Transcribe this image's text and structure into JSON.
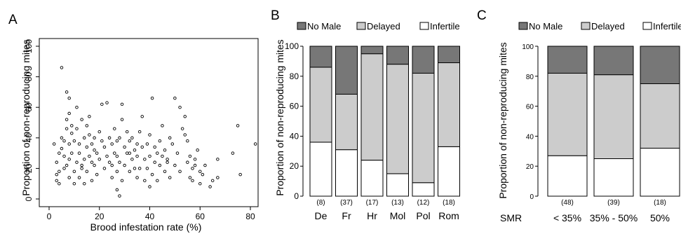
{
  "chart_data": [
    {
      "panel": "A",
      "type": "scatter",
      "title": "",
      "xlabel": "Brood infestation rate (%)",
      "ylabel": "Proportion of non-reproducing mites",
      "xlim": [
        0,
        80
      ],
      "ylim": [
        0,
        100
      ],
      "xticks": [
        0,
        20,
        40,
        60,
        80
      ],
      "yticks": [
        0,
        20,
        40,
        60,
        80,
        100
      ],
      "grid": false,
      "points": [
        [
          2,
          36
        ],
        [
          3,
          12
        ],
        [
          3,
          16
        ],
        [
          3,
          24
        ],
        [
          4,
          10
        ],
        [
          4,
          18
        ],
        [
          4,
          30
        ],
        [
          5,
          86
        ],
        [
          5,
          33
        ],
        [
          5,
          40
        ],
        [
          6,
          20
        ],
        [
          6,
          28
        ],
        [
          6,
          38
        ],
        [
          7,
          22
        ],
        [
          7,
          46
        ],
        [
          7,
          52
        ],
        [
          7,
          70
        ],
        [
          8,
          14
        ],
        [
          8,
          26
        ],
        [
          8,
          36
        ],
        [
          8,
          56
        ],
        [
          8,
          66
        ],
        [
          9,
          43
        ],
        [
          9,
          48
        ],
        [
          9,
          30
        ],
        [
          10,
          18
        ],
        [
          10,
          10
        ],
        [
          10,
          38
        ],
        [
          11,
          24
        ],
        [
          11,
          46
        ],
        [
          11,
          60
        ],
        [
          12,
          14
        ],
        [
          12,
          30
        ],
        [
          12,
          36
        ],
        [
          13,
          20
        ],
        [
          13,
          22
        ],
        [
          13,
          52
        ],
        [
          14,
          10
        ],
        [
          14,
          26
        ],
        [
          14,
          40
        ],
        [
          15,
          18
        ],
        [
          15,
          34
        ],
        [
          15,
          48
        ],
        [
          16,
          28
        ],
        [
          16,
          42
        ],
        [
          16,
          54
        ],
        [
          17,
          12
        ],
        [
          17,
          24
        ],
        [
          17,
          36
        ],
        [
          18,
          22
        ],
        [
          18,
          32
        ],
        [
          18,
          40
        ],
        [
          19,
          16
        ],
        [
          19,
          30
        ],
        [
          20,
          26
        ],
        [
          20,
          44
        ],
        [
          21,
          62
        ],
        [
          21,
          38
        ],
        [
          22,
          20
        ],
        [
          22,
          34
        ],
        [
          23,
          28
        ],
        [
          23,
          63
        ],
        [
          24,
          24
        ],
        [
          24,
          40
        ],
        [
          25,
          14
        ],
        [
          25,
          22
        ],
        [
          25,
          36
        ],
        [
          26,
          30
        ],
        [
          26,
          46
        ],
        [
          27,
          6
        ],
        [
          27,
          18
        ],
        [
          27,
          28
        ],
        [
          27,
          38
        ],
        [
          28,
          2
        ],
        [
          28,
          24
        ],
        [
          28,
          40
        ],
        [
          29,
          12
        ],
        [
          29,
          52
        ],
        [
          29,
          62
        ],
        [
          30,
          22
        ],
        [
          30,
          34
        ],
        [
          31,
          30
        ],
        [
          31,
          44
        ],
        [
          32,
          18
        ],
        [
          32,
          30
        ],
        [
          32,
          38
        ],
        [
          33,
          26
        ],
        [
          33,
          40
        ],
        [
          34,
          20
        ],
        [
          34,
          32
        ],
        [
          35,
          14
        ],
        [
          35,
          28
        ],
        [
          35,
          36
        ],
        [
          36,
          20
        ],
        [
          36,
          44
        ],
        [
          37,
          34
        ],
        [
          37,
          54
        ],
        [
          38,
          26
        ],
        [
          38,
          12
        ],
        [
          39,
          20
        ],
        [
          39,
          36
        ],
        [
          40,
          8
        ],
        [
          40,
          42
        ],
        [
          40,
          28
        ],
        [
          41,
          16
        ],
        [
          41,
          66
        ],
        [
          42,
          24
        ],
        [
          42,
          34
        ],
        [
          43,
          12
        ],
        [
          43,
          30
        ],
        [
          44,
          22
        ],
        [
          44,
          38
        ],
        [
          45,
          28
        ],
        [
          45,
          48
        ],
        [
          46,
          18
        ],
        [
          46,
          32
        ],
        [
          47,
          24
        ],
        [
          47,
          26
        ],
        [
          48,
          14
        ],
        [
          48,
          40
        ],
        [
          49,
          36
        ],
        [
          50,
          22
        ],
        [
          50,
          66
        ],
        [
          51,
          30
        ],
        [
          52,
          18
        ],
        [
          52,
          60
        ],
        [
          53,
          46
        ],
        [
          54,
          42
        ],
        [
          54,
          54
        ],
        [
          55,
          24
        ],
        [
          55,
          38
        ],
        [
          56,
          14
        ],
        [
          56,
          28
        ],
        [
          57,
          12
        ],
        [
          57,
          20
        ],
        [
          58,
          26
        ],
        [
          58,
          22
        ],
        [
          59,
          32
        ],
        [
          60,
          10
        ],
        [
          60,
          18
        ],
        [
          61,
          16
        ],
        [
          62,
          22
        ],
        [
          64,
          8
        ],
        [
          65,
          12
        ],
        [
          67,
          14
        ],
        [
          67,
          26
        ],
        [
          73,
          30
        ],
        [
          75,
          48
        ],
        [
          76,
          16
        ],
        [
          82,
          36
        ]
      ]
    },
    {
      "panel": "B",
      "type": "bar",
      "stacked": true,
      "title": "",
      "xlabel": "",
      "ylabel": "Proportion of non-reproducing mites",
      "ylim": [
        0,
        100
      ],
      "yticks": [
        0,
        20,
        40,
        60,
        80,
        100
      ],
      "legend_position": "top",
      "categories": [
        "De",
        "Fr",
        "Hr",
        "Mol",
        "Pol",
        "Rom"
      ],
      "counts": [
        "(8)",
        "(37)",
        "(17)",
        "(13)",
        "(12)",
        "(18)"
      ],
      "series": [
        {
          "name": "Infertile",
          "color": "#ffffff",
          "values": [
            36,
            31,
            24,
            15,
            9,
            33
          ]
        },
        {
          "name": "Delayed",
          "color": "#cccccc",
          "values": [
            50,
            37,
            71,
            73,
            73,
            56
          ]
        },
        {
          "name": "No Male",
          "color": "#777777",
          "values": [
            14,
            32,
            5,
            12,
            18,
            11
          ]
        }
      ]
    },
    {
      "panel": "C",
      "type": "bar",
      "stacked": true,
      "title": "",
      "xlabel": "SMR",
      "ylabel": "Proportion of non-reproducing mites",
      "ylim": [
        0,
        100
      ],
      "yticks": [
        0,
        20,
        40,
        60,
        80,
        100
      ],
      "legend_position": "top",
      "categories": [
        "< 35%",
        "35% - 50%",
        "50%"
      ],
      "counts": [
        "(48)",
        "(39)",
        "(18)"
      ],
      "series": [
        {
          "name": "Infertile",
          "color": "#ffffff",
          "values": [
            27,
            25,
            32
          ]
        },
        {
          "name": "Delayed",
          "color": "#cccccc",
          "values": [
            55,
            56,
            43
          ]
        },
        {
          "name": "No Male",
          "color": "#777777",
          "values": [
            18,
            19,
            25
          ]
        }
      ]
    }
  ]
}
